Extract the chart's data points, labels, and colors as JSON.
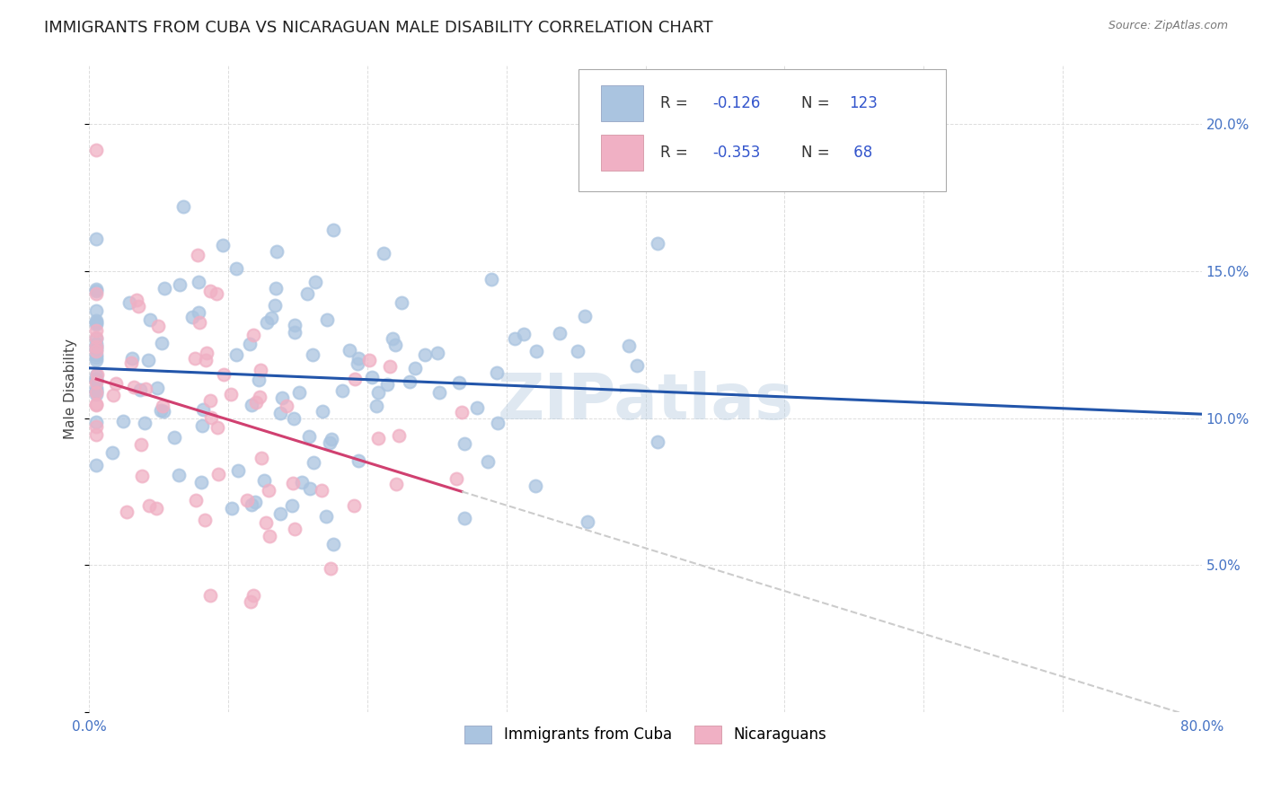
{
  "title": "IMMIGRANTS FROM CUBA VS NICARAGUAN MALE DISABILITY CORRELATION CHART",
  "source": "Source: ZipAtlas.com",
  "ylabel": "Male Disability",
  "xlim": [
    0.0,
    0.8
  ],
  "ylim": [
    0.0,
    0.22
  ],
  "xticks": [
    0.0,
    0.1,
    0.2,
    0.3,
    0.4,
    0.5,
    0.6,
    0.7,
    0.8
  ],
  "yticks": [
    0.0,
    0.05,
    0.1,
    0.15,
    0.2
  ],
  "cuba_color": "#aac4e0",
  "nicaragua_color": "#f0b0c4",
  "cuba_line_color": "#2255aa",
  "nicaragua_line_color": "#d04070",
  "legend_cuba_label": "Immigrants from Cuba",
  "legend_nicaragua_label": "Nicaraguans",
  "watermark": "ZIPatlas",
  "background_color": "#ffffff",
  "grid_color": "#dddddd",
  "title_fontsize": 13,
  "axis_label_fontsize": 11,
  "tick_fontsize": 11,
  "legend_fontsize": 12
}
